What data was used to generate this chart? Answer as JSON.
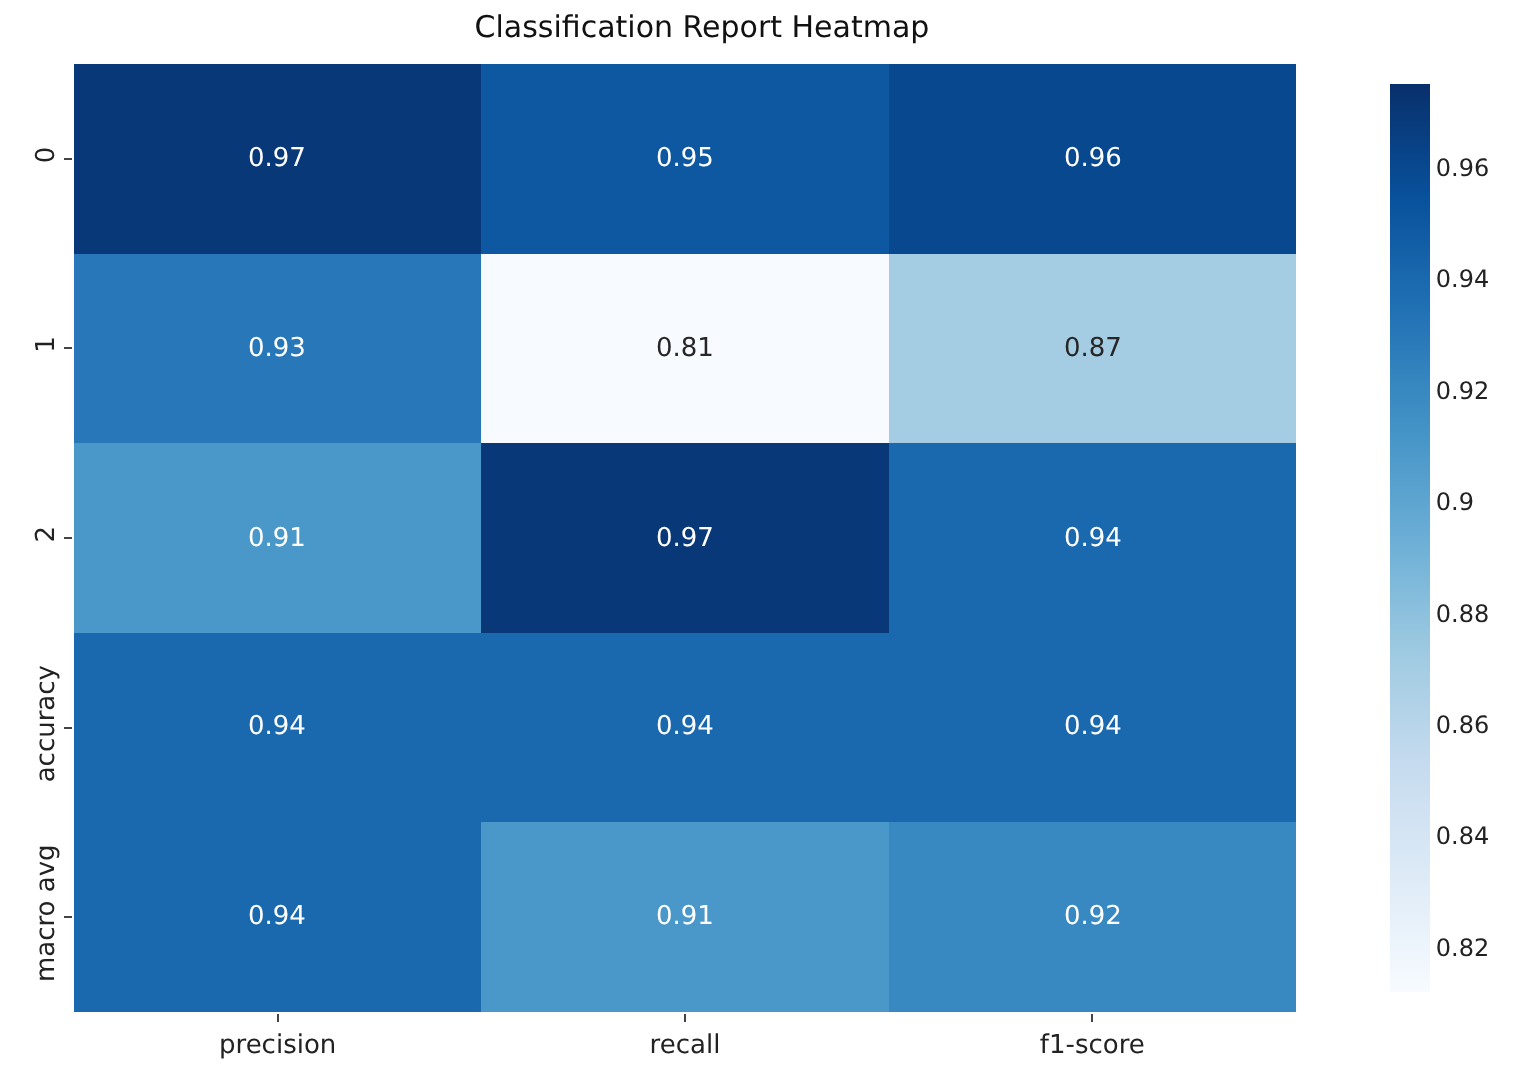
{
  "chart_data": {
    "type": "heatmap",
    "title": "Classification Report Heatmap",
    "categories": [
      "precision",
      "recall",
      "f1-score"
    ],
    "y_categories": [
      "0",
      "1",
      "2",
      "accuracy",
      "macro avg"
    ],
    "cells": [
      [
        0.97,
        0.95,
        0.96
      ],
      [
        0.93,
        0.81,
        0.87
      ],
      [
        0.91,
        0.97,
        0.94
      ],
      [
        0.94,
        0.94,
        0.94
      ],
      [
        0.94,
        0.91,
        0.92
      ]
    ],
    "data_labels": true,
    "clim": [
      0.812,
      0.975
    ],
    "cticks": [
      0.82,
      0.84,
      0.86,
      0.88,
      0.9,
      0.92,
      0.94,
      0.96
    ]
  }
}
